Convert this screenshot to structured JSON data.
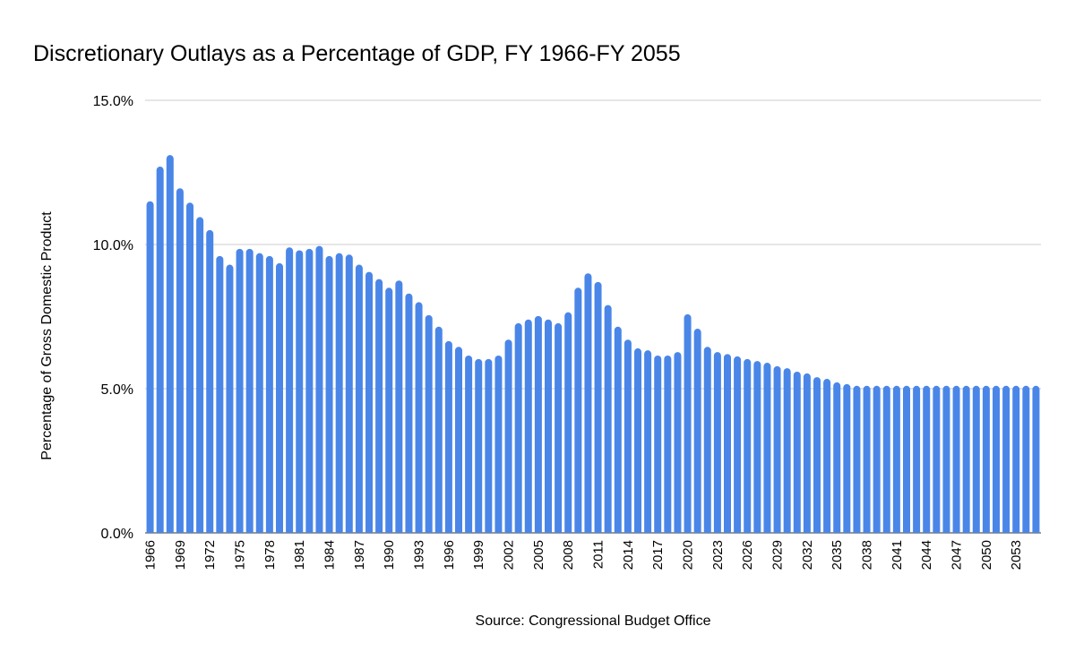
{
  "chart_data": {
    "type": "bar",
    "title": "Discretionary Outlays as a Percentage of GDP, FY 1966-FY 2055",
    "xlabel": "Source: Congressional Budget Office",
    "ylabel": "Percentage of Gross Domestic Product",
    "ylim": [
      0,
      15
    ],
    "yticks": [
      "0.0%",
      "5.0%",
      "10.0%",
      "15.0%"
    ],
    "ytick_values": [
      0,
      5,
      10,
      15
    ],
    "grid": true,
    "bar_color": "#4a86e8",
    "start_year": 1966,
    "xtick_step": 3,
    "categories": [
      1966,
      1967,
      1968,
      1969,
      1970,
      1971,
      1972,
      1973,
      1974,
      1975,
      1976,
      1977,
      1978,
      1979,
      1980,
      1981,
      1982,
      1983,
      1984,
      1985,
      1986,
      1987,
      1988,
      1989,
      1990,
      1991,
      1992,
      1993,
      1994,
      1995,
      1996,
      1997,
      1998,
      1999,
      2000,
      2001,
      2002,
      2003,
      2004,
      2005,
      2006,
      2007,
      2008,
      2009,
      2010,
      2011,
      2012,
      2013,
      2014,
      2015,
      2016,
      2017,
      2018,
      2019,
      2020,
      2021,
      2022,
      2023,
      2024,
      2025,
      2026,
      2027,
      2028,
      2029,
      2030,
      2031,
      2032,
      2033,
      2034,
      2035,
      2036,
      2037,
      2038,
      2039,
      2040,
      2041,
      2042,
      2043,
      2044,
      2045,
      2046,
      2047,
      2048,
      2049,
      2050,
      2051,
      2052,
      2053,
      2054,
      2055
    ],
    "values": [
      11.5,
      12.7,
      13.1,
      11.95,
      11.45,
      10.95,
      10.5,
      9.6,
      9.3,
      9.85,
      9.85,
      9.7,
      9.6,
      9.35,
      9.9,
      9.8,
      9.85,
      9.95,
      9.6,
      9.7,
      9.65,
      9.3,
      9.05,
      8.8,
      8.5,
      8.75,
      8.3,
      8.0,
      7.55,
      7.15,
      6.65,
      6.45,
      6.15,
      6.03,
      6.03,
      6.15,
      6.7,
      7.27,
      7.4,
      7.52,
      7.4,
      7.27,
      7.65,
      8.5,
      9.0,
      8.7,
      7.9,
      7.15,
      6.7,
      6.4,
      6.33,
      6.15,
      6.15,
      6.27,
      7.58,
      7.08,
      6.45,
      6.27,
      6.2,
      6.12,
      6.03,
      5.96,
      5.9,
      5.78,
      5.71,
      5.59,
      5.53,
      5.4,
      5.34,
      5.22,
      5.16,
      5.1,
      5.1,
      5.1,
      5.1,
      5.1,
      5.1,
      5.1,
      5.1,
      5.1,
      5.1,
      5.1,
      5.1,
      5.1,
      5.1,
      5.1,
      5.1,
      5.1,
      5.1,
      5.1
    ]
  }
}
